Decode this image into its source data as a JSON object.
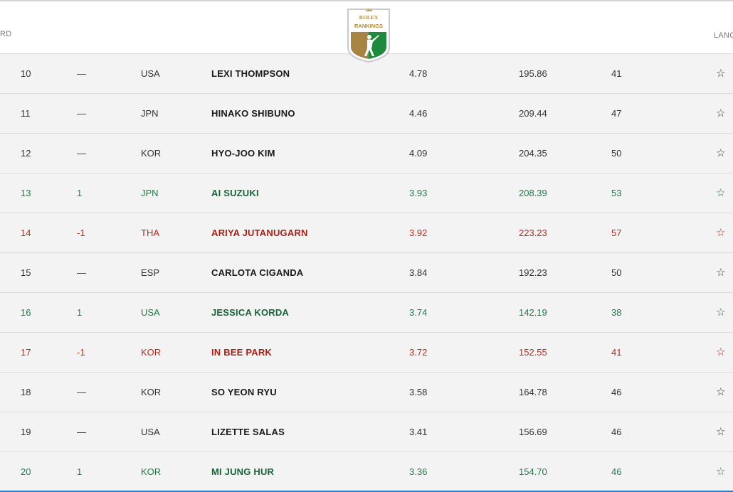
{
  "header": {
    "left_label": "RD",
    "right_label": "LANG",
    "logo": {
      "line1": "ROLEX",
      "line2": "RANKINGS",
      "icon": "golfer-shield-icon"
    }
  },
  "colors": {
    "up": "#1f7a48",
    "down": "#b52a1d",
    "neutral": "#333333",
    "accent_border": "#2f7cc4"
  },
  "rows": [
    {
      "rank": "10",
      "move": "—",
      "country": "USA",
      "name": "LEXI THOMPSON",
      "avg": "4.78",
      "total": "195.86",
      "events": "41",
      "star": "☆",
      "trend": "same"
    },
    {
      "rank": "11",
      "move": "—",
      "country": "JPN",
      "name": "HINAKO SHIBUNO",
      "avg": "4.46",
      "total": "209.44",
      "events": "47",
      "star": "☆",
      "trend": "same"
    },
    {
      "rank": "12",
      "move": "—",
      "country": "KOR",
      "name": "HYO-JOO KIM",
      "avg": "4.09",
      "total": "204.35",
      "events": "50",
      "star": "☆",
      "trend": "same"
    },
    {
      "rank": "13",
      "move": "1",
      "country": "JPN",
      "name": "AI SUZUKI",
      "avg": "3.93",
      "total": "208.39",
      "events": "53",
      "star": "☆",
      "trend": "up"
    },
    {
      "rank": "14",
      "move": "-1",
      "country": "THA",
      "name": "ARIYA JUTANUGARN",
      "avg": "3.92",
      "total": "223.23",
      "events": "57",
      "star": "☆",
      "trend": "down"
    },
    {
      "rank": "15",
      "move": "—",
      "country": "ESP",
      "name": "CARLOTA CIGANDA",
      "avg": "3.84",
      "total": "192.23",
      "events": "50",
      "star": "☆",
      "trend": "same"
    },
    {
      "rank": "16",
      "move": "1",
      "country": "USA",
      "name": "JESSICA KORDA",
      "avg": "3.74",
      "total": "142.19",
      "events": "38",
      "star": "☆",
      "trend": "up"
    },
    {
      "rank": "17",
      "move": "-1",
      "country": "KOR",
      "name": "IN BEE PARK",
      "avg": "3.72",
      "total": "152.55",
      "events": "41",
      "star": "☆",
      "trend": "down"
    },
    {
      "rank": "18",
      "move": "—",
      "country": "KOR",
      "name": "SO YEON RYU",
      "avg": "3.58",
      "total": "164.78",
      "events": "46",
      "star": "☆",
      "trend": "same"
    },
    {
      "rank": "19",
      "move": "—",
      "country": "USA",
      "name": "LIZETTE SALAS",
      "avg": "3.41",
      "total": "156.69",
      "events": "46",
      "star": "☆",
      "trend": "same"
    },
    {
      "rank": "20",
      "move": "1",
      "country": "KOR",
      "name": "MI JUNG HUR",
      "avg": "3.36",
      "total": "154.70",
      "events": "46",
      "star": "☆",
      "trend": "up"
    }
  ]
}
